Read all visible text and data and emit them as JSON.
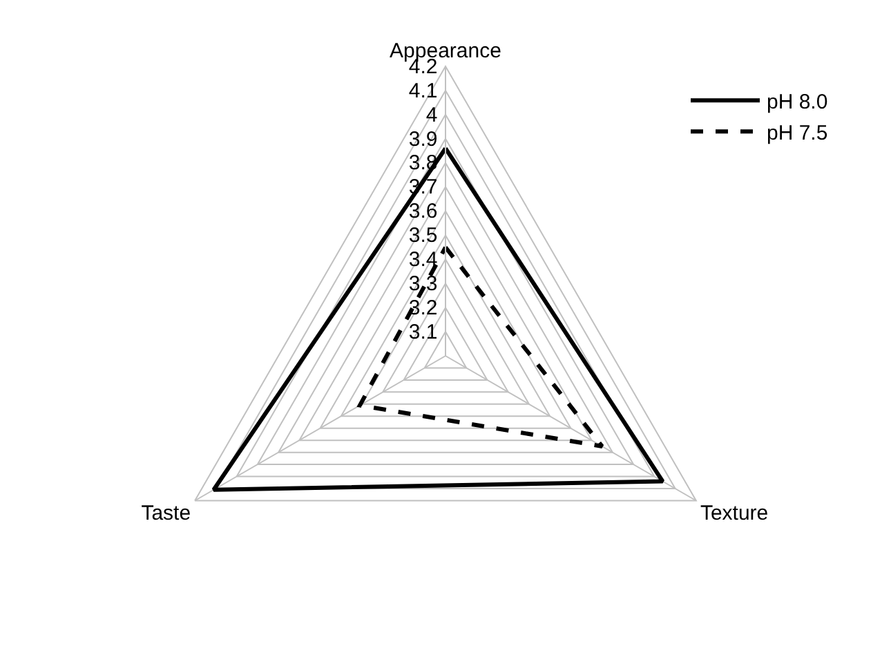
{
  "chart_data": {
    "type": "radar",
    "categories": [
      "Appearance",
      "Texture",
      "Taste"
    ],
    "series": [
      {
        "name": "pH 8.0",
        "color": "#000000",
        "line_style": "solid",
        "values": [
          3.86,
          4.04,
          4.11
        ]
      },
      {
        "name": "pH 7.5",
        "color": "#000000",
        "line_style": "dashed",
        "values": [
          3.45,
          3.75,
          3.41
        ]
      }
    ],
    "ylim": [
      3.0,
      4.2
    ],
    "yticks": [
      3.1,
      3.2,
      3.3,
      3.4,
      3.5,
      3.6,
      3.7,
      3.8,
      3.9,
      4,
      4.1,
      4.2
    ],
    "grid": true,
    "legend": "top right",
    "marker": "none"
  }
}
